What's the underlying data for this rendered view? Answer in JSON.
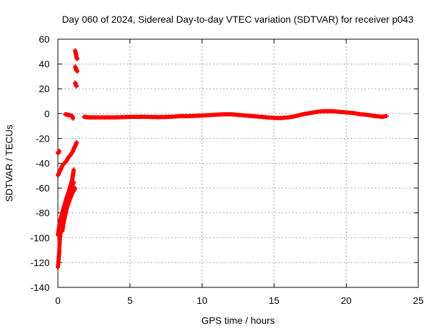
{
  "chart_data": {
    "type": "scatter",
    "title": "Day 060 of 2024, Sidereal Day-to-day VTEC variation (SDTVAR) for receiver p043",
    "xlabel": "GPS time / hours",
    "ylabel": "SDTVAR / TECUs",
    "xlim": [
      0,
      25
    ],
    "ylim": [
      -140,
      60
    ],
    "xticks": [
      0,
      5,
      10,
      15,
      20,
      25
    ],
    "yticks": [
      -140,
      -120,
      -100,
      -80,
      -60,
      -40,
      -20,
      0,
      20,
      40,
      60
    ],
    "grid": true,
    "marker": "plus",
    "colors": {
      "points": "#ff0000",
      "grid": "#a0a0a0",
      "axis": "#000000"
    },
    "series": [
      {
        "name": "SDTVAR",
        "segments": [
          {
            "x": [
              0.0,
              0.05,
              0.1
            ],
            "y": [
              -32,
              -31,
              -30
            ]
          },
          {
            "x": [
              0.0,
              0.1,
              0.2,
              0.3,
              0.45,
              0.6,
              0.75,
              0.9,
              1.05,
              1.15,
              1.25,
              1.3
            ],
            "y": [
              -50,
              -47,
              -45,
              -42,
              -40,
              -38,
              -35,
              -33,
              -30,
              -27,
              -25,
              -23
            ]
          },
          {
            "x": [
              0.0,
              0.05,
              0.1,
              0.15,
              0.2,
              0.3,
              0.4,
              0.5,
              0.6,
              0.7,
              0.8,
              0.9,
              1.0,
              1.05,
              1.1
            ],
            "y": [
              -124,
              -118,
              -110,
              -100,
              -92,
              -84,
              -78,
              -73,
              -69,
              -65,
              -61,
              -57,
              -53,
              -49,
              -45
            ]
          },
          {
            "x": [
              0.0,
              0.1,
              0.2,
              0.3,
              0.4,
              0.5,
              0.6,
              0.7,
              0.8,
              0.9,
              1.0,
              1.1
            ],
            "y": [
              -98,
              -90,
              -85,
              -80,
              -76,
              -72,
              -68,
              -65,
              -62,
              -60,
              -58,
              -55
            ]
          },
          {
            "x": [
              0.3,
              0.4,
              0.5,
              0.6,
              0.7,
              0.8,
              0.9,
              1.0,
              1.1,
              1.2
            ],
            "y": [
              -95,
              -88,
              -82,
              -77,
              -73,
              -70,
              -67,
              -64,
              -62,
              -60
            ]
          },
          {
            "x": [
              0.5,
              0.6,
              0.7,
              0.8,
              0.9,
              1.0,
              1.05
            ],
            "y": [
              -0.5,
              -0.7,
              -1.0,
              -1.2,
              -1.5,
              -2.0,
              -4.0
            ]
          },
          {
            "x": [
              1.2,
              1.25,
              1.3,
              1.35
            ],
            "y": [
              51,
              48,
              45,
              44
            ]
          },
          {
            "x": [
              1.2,
              1.25,
              1.3,
              1.35
            ],
            "y": [
              38,
              36,
              35,
              34
            ]
          },
          {
            "x": [
              1.2,
              1.25,
              1.3
            ],
            "y": [
              25,
              23,
              22
            ]
          },
          {
            "x": [
              1.8,
              2.0,
              2.2,
              2.5,
              3.0,
              3.5,
              4.0,
              4.5,
              5.0,
              5.5,
              6.0,
              6.5,
              7.0,
              7.5,
              8.0,
              8.5,
              9.0,
              9.5,
              10.0,
              10.5,
              11.0,
              11.5,
              12.0,
              12.5,
              13.0,
              13.5,
              14.0,
              14.5,
              15.0,
              15.5,
              16.0,
              16.5,
              17.0,
              17.5,
              18.0,
              18.5,
              19.0,
              19.5,
              20.0,
              20.5,
              21.0,
              21.5,
              22.0,
              22.5,
              22.8
            ],
            "y": [
              -2.5,
              -2.8,
              -3.0,
              -3.0,
              -3.0,
              -3.0,
              -3.0,
              -2.8,
              -2.6,
              -2.6,
              -2.5,
              -2.7,
              -2.8,
              -2.7,
              -2.4,
              -2.0,
              -2.0,
              -1.8,
              -1.5,
              -1.2,
              -0.8,
              -0.5,
              -0.5,
              -1.0,
              -1.5,
              -2.0,
              -2.5,
              -3.0,
              -3.5,
              -3.5,
              -3.0,
              -2.0,
              -0.5,
              0.5,
              1.5,
              2.0,
              2.0,
              1.5,
              1.0,
              0.5,
              -0.5,
              -1.0,
              -2.0,
              -2.5,
              -2.0
            ]
          }
        ]
      }
    ]
  }
}
